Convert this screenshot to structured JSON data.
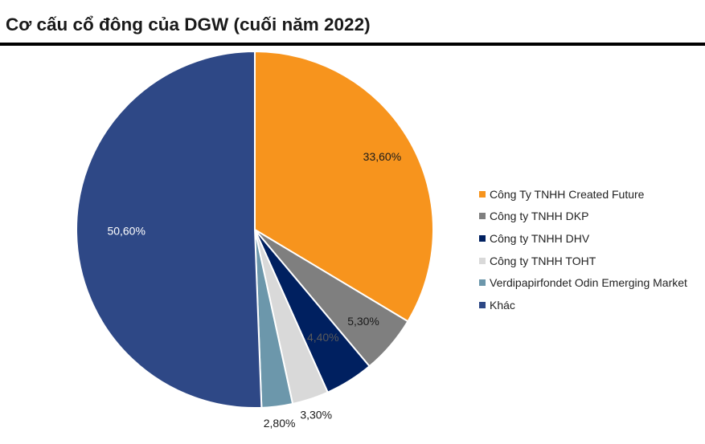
{
  "title": "Cơ cấu cổ đông của DGW (cuối năm 2022)",
  "chart_data": {
    "type": "pie",
    "title": "Cơ cấu cổ đông của DGW (cuối năm 2022)",
    "legend_position": "right",
    "slices": [
      {
        "name": "Công Ty TNHH Created Future",
        "value": 33.6,
        "label": "33,60%",
        "color": "#F7941D"
      },
      {
        "name": "Công ty TNHH DKP",
        "value": 5.3,
        "label": "5,30%",
        "color": "#7F7F7F"
      },
      {
        "name": "Công ty TNHH DHV",
        "value": 4.4,
        "label": "4,40%",
        "color": "#002060"
      },
      {
        "name": "Công ty TNHH TOHT",
        "value": 3.3,
        "label": "3,30%",
        "color": "#D9D9D9"
      },
      {
        "name": "Verdipapirfondet Odin Emerging Market",
        "value": 2.8,
        "label": "2,80%",
        "color": "#6C97AB"
      },
      {
        "name": "Khác",
        "value": 50.6,
        "label": "50,60%",
        "color": "#2E4886"
      }
    ]
  }
}
